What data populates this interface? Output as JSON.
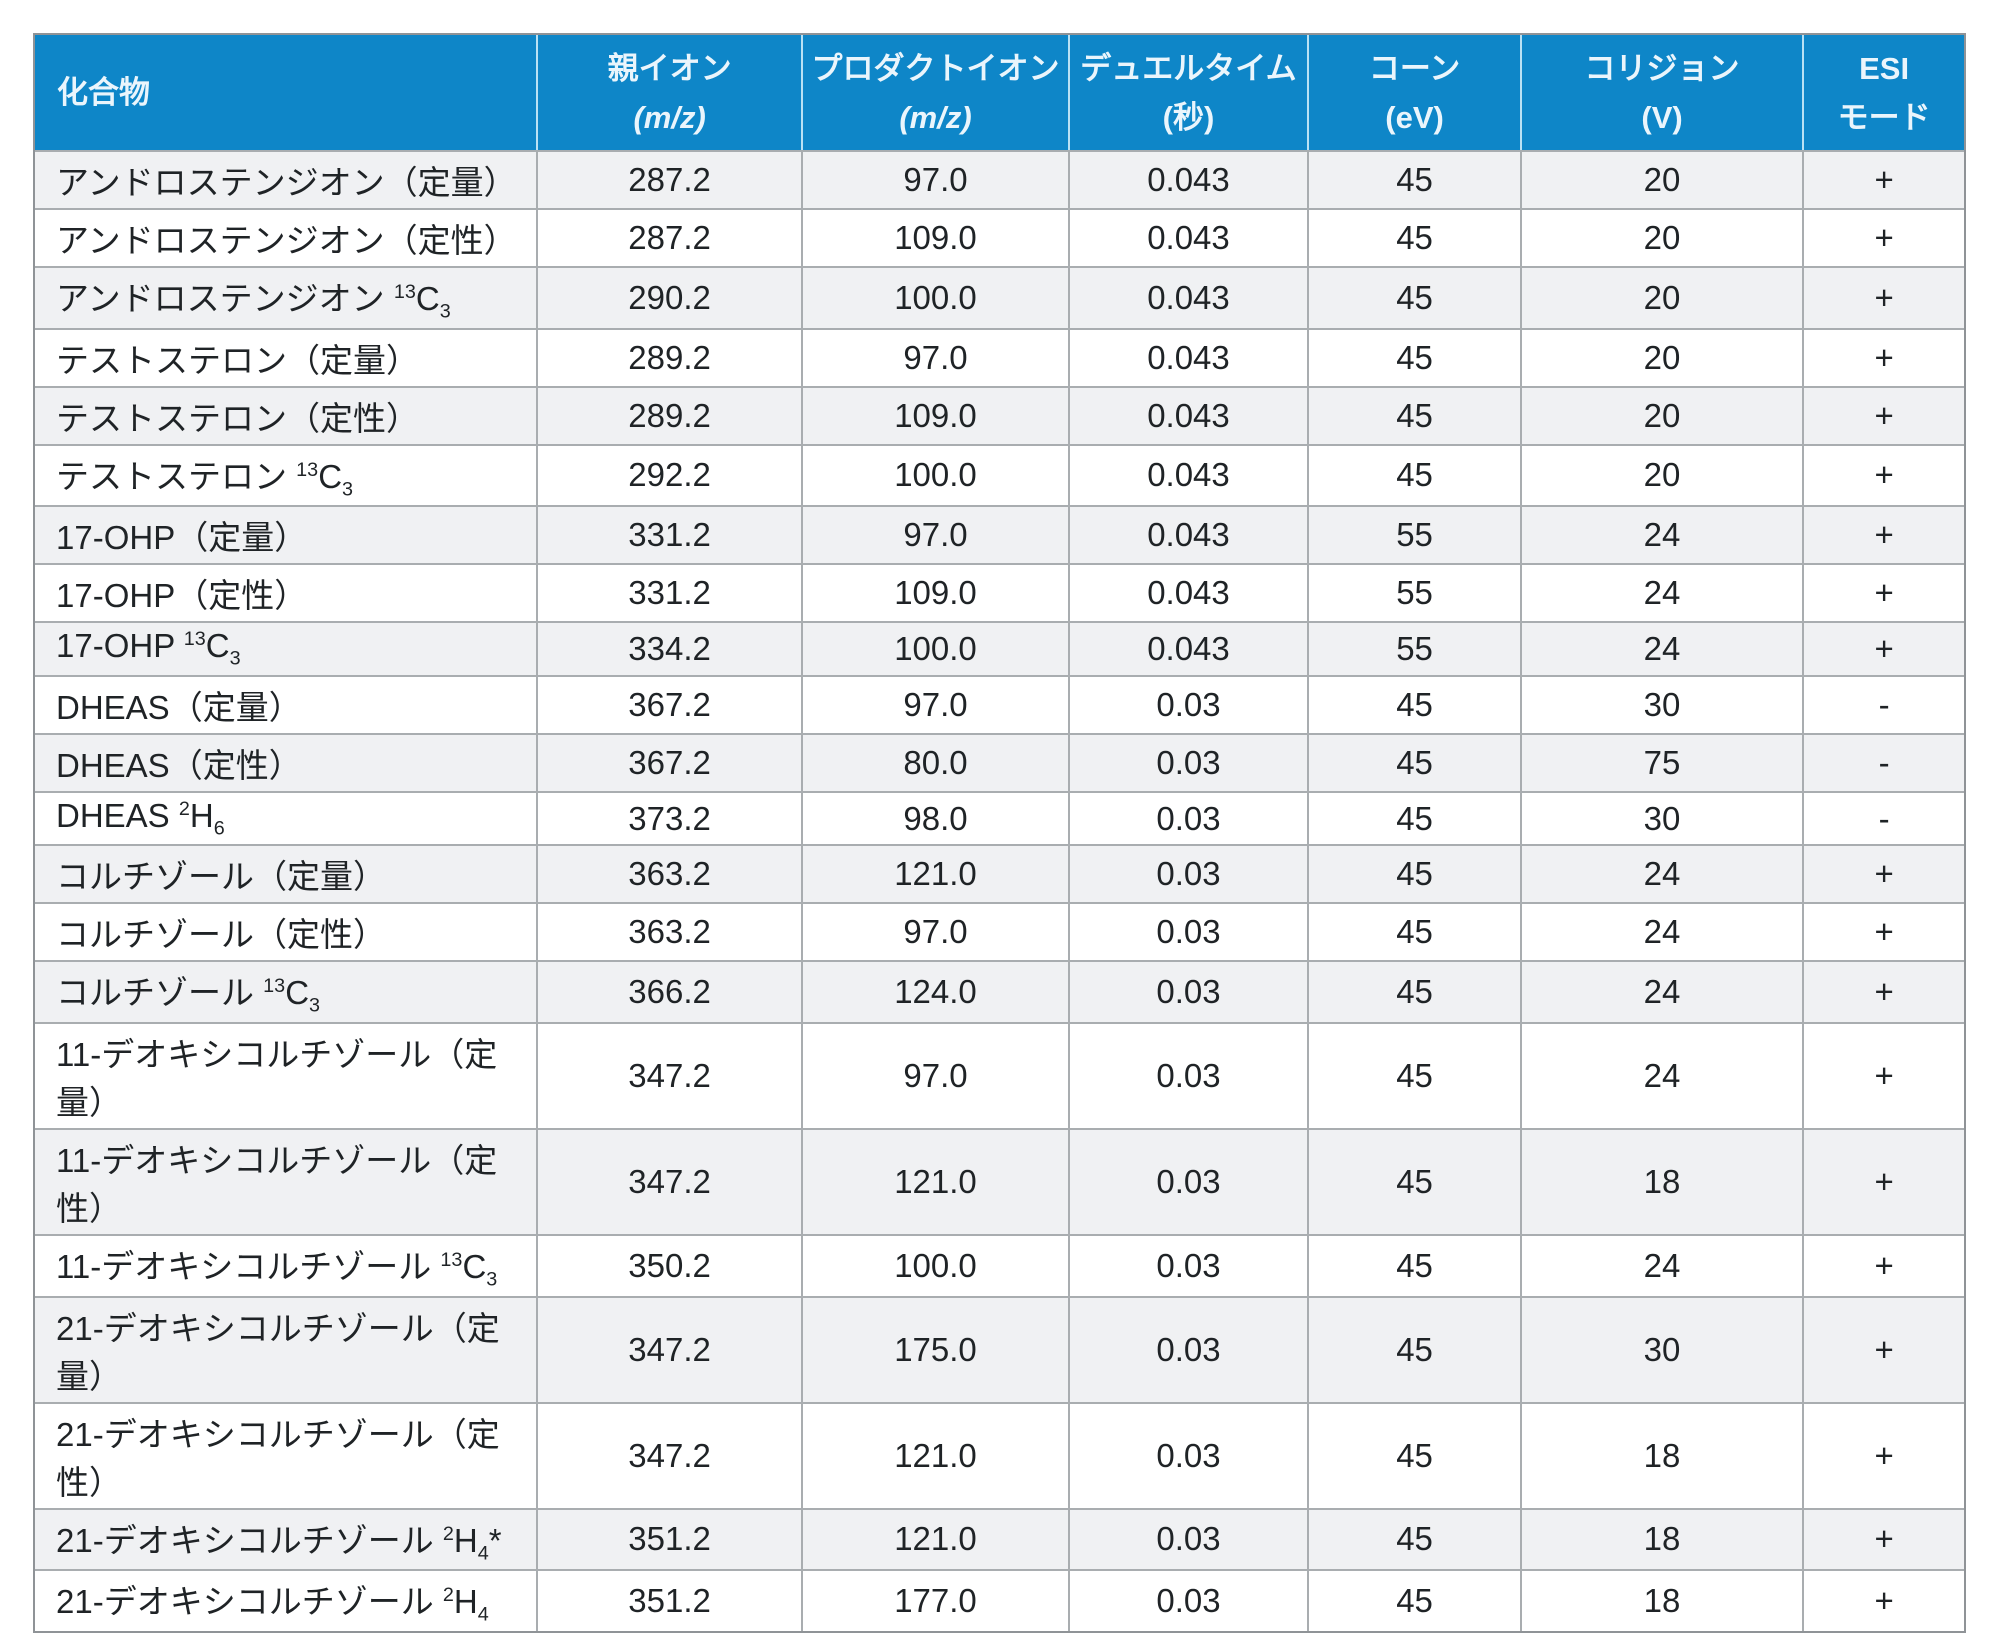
{
  "colors": {
    "header_bg": "#0e86c8",
    "header_text": "#eaf5fc",
    "header_divider": "#b9e1f4",
    "row_odd_bg": "#f0f1f3",
    "row_even_bg": "#ffffff",
    "border_inner": "#a9adb0",
    "border_outer": "#8f9397",
    "body_text": "#1f2326"
  },
  "table": {
    "columns": [
      {
        "id": "compound",
        "label_lines": [
          {
            "text": "化合物"
          }
        ]
      },
      {
        "id": "parent_ion",
        "label_lines": [
          {
            "text": "親イオン"
          },
          {
            "text": "(m/z)",
            "italic": true
          }
        ]
      },
      {
        "id": "product_ion",
        "label_lines": [
          {
            "text": "プロダクトイオン"
          },
          {
            "text": "(m/z)",
            "italic": true
          }
        ]
      },
      {
        "id": "dwell_time",
        "label_lines": [
          {
            "text": "デュエルタイム"
          },
          {
            "text": "(秒)"
          }
        ]
      },
      {
        "id": "cone",
        "label_lines": [
          {
            "text": "コーン"
          },
          {
            "text": "(eV)"
          }
        ]
      },
      {
        "id": "collision",
        "label_lines": [
          {
            "text": "コリジョン"
          },
          {
            "text": "(V)"
          }
        ]
      },
      {
        "id": "esi_mode",
        "label_lines": [
          {
            "text": "ESI"
          },
          {
            "text": "モード"
          }
        ]
      }
    ],
    "rows": [
      {
        "compound": [
          {
            "t": "アンドロステンジオン（定量）"
          }
        ],
        "parent_ion": "287.2",
        "product_ion": "97.0",
        "dwell_time": "0.043",
        "cone": "45",
        "collision": "20",
        "esi_mode": "+"
      },
      {
        "compound": [
          {
            "t": "アンドロステンジオン（定性）"
          }
        ],
        "parent_ion": "287.2",
        "product_ion": "109.0",
        "dwell_time": "0.043",
        "cone": "45",
        "collision": "20",
        "esi_mode": "+"
      },
      {
        "compound": [
          {
            "t": "アンドロステンジオン "
          },
          {
            "sup": "13"
          },
          {
            "t": "C"
          },
          {
            "sub": "3"
          }
        ],
        "parent_ion": "290.2",
        "product_ion": "100.0",
        "dwell_time": "0.043",
        "cone": "45",
        "collision": "20",
        "esi_mode": "+"
      },
      {
        "compound": [
          {
            "t": "テストステロン（定量）"
          }
        ],
        "parent_ion": "289.2",
        "product_ion": "97.0",
        "dwell_time": "0.043",
        "cone": "45",
        "collision": "20",
        "esi_mode": "+"
      },
      {
        "compound": [
          {
            "t": "テストステロン（定性）"
          }
        ],
        "parent_ion": "289.2",
        "product_ion": "109.0",
        "dwell_time": "0.043",
        "cone": "45",
        "collision": "20",
        "esi_mode": "+"
      },
      {
        "compound": [
          {
            "t": "テストステロン "
          },
          {
            "sup": "13"
          },
          {
            "t": "C"
          },
          {
            "sub": "3"
          }
        ],
        "parent_ion": "292.2",
        "product_ion": "100.0",
        "dwell_time": "0.043",
        "cone": "45",
        "collision": "20",
        "esi_mode": "+"
      },
      {
        "compound": [
          {
            "t": "17-OHP（定量）"
          }
        ],
        "parent_ion": "331.2",
        "product_ion": "97.0",
        "dwell_time": "0.043",
        "cone": "55",
        "collision": "24",
        "esi_mode": "+"
      },
      {
        "compound": [
          {
            "t": "17-OHP（定性）"
          }
        ],
        "parent_ion": "331.2",
        "product_ion": "109.0",
        "dwell_time": "0.043",
        "cone": "55",
        "collision": "24",
        "esi_mode": "+"
      },
      {
        "compound": [
          {
            "t": "17-OHP "
          },
          {
            "sup": "13"
          },
          {
            "t": "C"
          },
          {
            "sub": "3"
          }
        ],
        "parent_ion": "334.2",
        "product_ion": "100.0",
        "dwell_time": "0.043",
        "cone": "55",
        "collision": "24",
        "esi_mode": "+"
      },
      {
        "compound": [
          {
            "t": "DHEAS（定量）"
          }
        ],
        "parent_ion": "367.2",
        "product_ion": "97.0",
        "dwell_time": "0.03",
        "cone": "45",
        "collision": "30",
        "esi_mode": "-"
      },
      {
        "compound": [
          {
            "t": "DHEAS（定性）"
          }
        ],
        "parent_ion": "367.2",
        "product_ion": "80.0",
        "dwell_time": "0.03",
        "cone": "45",
        "collision": "75",
        "esi_mode": "-"
      },
      {
        "compound": [
          {
            "t": "DHEAS "
          },
          {
            "sup": "2"
          },
          {
            "t": "H"
          },
          {
            "sub": "6"
          }
        ],
        "parent_ion": "373.2",
        "product_ion": "98.0",
        "dwell_time": "0.03",
        "cone": "45",
        "collision": "30",
        "esi_mode": "-"
      },
      {
        "compound": [
          {
            "t": "コルチゾール（定量）"
          }
        ],
        "parent_ion": "363.2",
        "product_ion": "121.0",
        "dwell_time": "0.03",
        "cone": "45",
        "collision": "24",
        "esi_mode": "+"
      },
      {
        "compound": [
          {
            "t": "コルチゾール（定性）"
          }
        ],
        "parent_ion": "363.2",
        "product_ion": "97.0",
        "dwell_time": "0.03",
        "cone": "45",
        "collision": "24",
        "esi_mode": "+"
      },
      {
        "compound": [
          {
            "t": "コルチゾール "
          },
          {
            "sup": "13"
          },
          {
            "t": "C"
          },
          {
            "sub": "3"
          }
        ],
        "parent_ion": "366.2",
        "product_ion": "124.0",
        "dwell_time": "0.03",
        "cone": "45",
        "collision": "24",
        "esi_mode": "+"
      },
      {
        "compound": [
          {
            "t": "11-デオキシコルチゾール（定量）"
          }
        ],
        "parent_ion": "347.2",
        "product_ion": "97.0",
        "dwell_time": "0.03",
        "cone": "45",
        "collision": "24",
        "esi_mode": "+"
      },
      {
        "compound": [
          {
            "t": "11-デオキシコルチゾール（定性）"
          }
        ],
        "parent_ion": "347.2",
        "product_ion": "121.0",
        "dwell_time": "0.03",
        "cone": "45",
        "collision": "18",
        "esi_mode": "+"
      },
      {
        "compound": [
          {
            "t": "11-デオキシコルチゾール "
          },
          {
            "sup": "13"
          },
          {
            "t": "C"
          },
          {
            "sub": "3"
          }
        ],
        "parent_ion": "350.2",
        "product_ion": "100.0",
        "dwell_time": "0.03",
        "cone": "45",
        "collision": "24",
        "esi_mode": "+"
      },
      {
        "compound": [
          {
            "t": "21-デオキシコルチゾール（定量）"
          }
        ],
        "parent_ion": "347.2",
        "product_ion": "175.0",
        "dwell_time": "0.03",
        "cone": "45",
        "collision": "30",
        "esi_mode": "+"
      },
      {
        "compound": [
          {
            "t": "21-デオキシコルチゾール（定性）"
          }
        ],
        "parent_ion": "347.2",
        "product_ion": "121.0",
        "dwell_time": "0.03",
        "cone": "45",
        "collision": "18",
        "esi_mode": "+"
      },
      {
        "compound": [
          {
            "t": "21-デオキシコルチゾール "
          },
          {
            "sup": "2"
          },
          {
            "t": "H"
          },
          {
            "sub": "4"
          },
          {
            "t": "*"
          }
        ],
        "parent_ion": "351.2",
        "product_ion": "121.0",
        "dwell_time": "0.03",
        "cone": "45",
        "collision": "18",
        "esi_mode": "+"
      },
      {
        "compound": [
          {
            "t": "21-デオキシコルチゾール "
          },
          {
            "sup": "2"
          },
          {
            "t": "H"
          },
          {
            "sub": "4"
          }
        ],
        "parent_ion": "351.2",
        "product_ion": "177.0",
        "dwell_time": "0.03",
        "cone": "45",
        "collision": "18",
        "esi_mode": "+"
      }
    ]
  }
}
